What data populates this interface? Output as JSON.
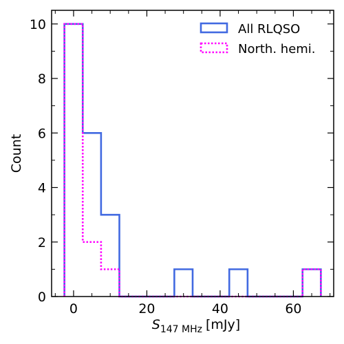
{
  "chart_data": {
    "type": "histogram",
    "bin_edges": [
      -2.5,
      2.5,
      7.5,
      12.5,
      17.5,
      22.5,
      27.5,
      32.5,
      37.5,
      42.5,
      47.5,
      52.5,
      57.5,
      62.5,
      67.5
    ],
    "series": [
      {
        "name": "All RLQSO",
        "color": "#4169e1",
        "style": "solid",
        "counts": [
          10,
          6,
          3,
          0,
          0,
          0,
          1,
          0,
          0,
          1,
          0,
          0,
          0,
          1
        ]
      },
      {
        "name": "North. hemi.",
        "color": "#ff00ff",
        "style": "dotted",
        "counts": [
          10,
          2,
          1,
          0,
          0,
          0,
          0,
          0,
          0,
          0,
          0,
          0,
          0,
          1
        ]
      }
    ],
    "xlabel": "S",
    "xlabel_subscript": "147 MHz",
    "xlabel_unit": "[mJy]",
    "ylabel": "Count",
    "xlim": [
      -6,
      71
    ],
    "ylim": [
      0,
      10.5
    ],
    "x_major_ticks": [
      0,
      20,
      40,
      60
    ],
    "x_minor_ticks": [
      -5,
      5,
      10,
      15,
      25,
      30,
      35,
      45,
      50,
      55,
      65,
      70
    ],
    "y_major_ticks": [
      0,
      2,
      4,
      6,
      8,
      10
    ],
    "y_minor_ticks": [
      1,
      3,
      5,
      7,
      9
    ],
    "legend_position": "top-right",
    "grid": false
  }
}
